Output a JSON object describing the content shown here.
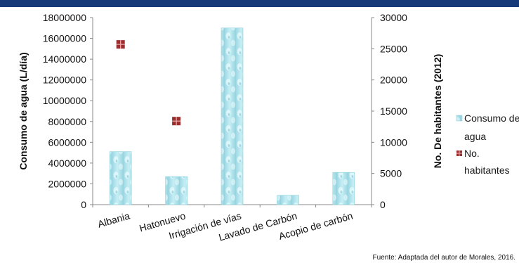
{
  "chart_data": {
    "type": "bar",
    "categories": [
      "Albania",
      "Hatonuevo",
      "Irrigación de vías",
      "Lavado de Carbón",
      "Acopio de carbón"
    ],
    "series": [
      {
        "name": "Consumo de agua",
        "kind": "bar",
        "axis": "left",
        "values": [
          5100000,
          2700000,
          17000000,
          900000,
          3100000
        ]
      },
      {
        "name": "No. habitantes",
        "kind": "marker",
        "axis": "right",
        "values": [
          25700,
          13400,
          null,
          null,
          null
        ]
      }
    ],
    "ylabel_left": "Consumo de agua  (L/día)",
    "ylabel_right": "No. De habitantes (2012)",
    "ylim_left": [
      0,
      18000000
    ],
    "ylim_right": [
      0,
      30000
    ],
    "yticks_left": [
      "0",
      "2000000",
      "4000000",
      "6000000",
      "8000000",
      "10000000",
      "12000000",
      "14000000",
      "16000000",
      "18000000"
    ],
    "yticks_right": [
      "0",
      "5000",
      "10000",
      "15000",
      "20000",
      "25000",
      "30000"
    ],
    "legend": {
      "placement": "right",
      "entries": [
        "Consumo de agua",
        "No. habitantes"
      ],
      "entries_display": [
        [
          "Consumo de",
          "agua"
        ],
        [
          "No.",
          "habitantes"
        ]
      ]
    },
    "grid": false,
    "colors": {
      "bar_fill": "#a9e3ec",
      "bar_highlight": "#e3f7fa",
      "marker_fill": "#9b2e2e",
      "header_band": "#163a79",
      "axis": "#888888"
    },
    "source_note": "Fuente: Adaptada del autor de Morales, 2016."
  }
}
